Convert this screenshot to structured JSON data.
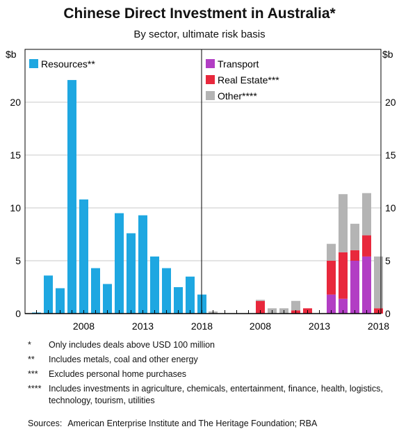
{
  "title": "Chinese Direct Investment in Australia*",
  "subtitle": "By sector, ultimate risk basis",
  "colors": {
    "resources": "#1ea7e1",
    "transport": "#b23ec4",
    "real_estate": "#e8283c",
    "other": "#b4b4b4",
    "gridline": "#c8c8c8",
    "axis": "#000000"
  },
  "chart_data": [
    {
      "type": "bar",
      "x": [
        2004,
        2005,
        2006,
        2007,
        2008,
        2009,
        2010,
        2011,
        2012,
        2013,
        2014,
        2015,
        2016,
        2017,
        2018
      ],
      "series": [
        {
          "name": "Resources**",
          "values": [
            0.1,
            3.6,
            2.4,
            22.1,
            10.8,
            4.3,
            2.8,
            9.5,
            7.6,
            9.3,
            5.4,
            4.3,
            2.5,
            3.5,
            1.8
          ]
        }
      ],
      "xticks": [
        "2008",
        "2013",
        "2018"
      ],
      "yticks": [
        "0",
        "5",
        "10",
        "15",
        "20"
      ],
      "ylabel": "$b",
      "ylim": [
        0,
        25
      ],
      "legend_position": "top-left"
    },
    {
      "type": "bar",
      "stacked": true,
      "x": [
        2004,
        2005,
        2006,
        2007,
        2008,
        2009,
        2010,
        2011,
        2012,
        2013,
        2014,
        2015,
        2016,
        2017,
        2018
      ],
      "series": [
        {
          "name": "Transport",
          "values": [
            0,
            0,
            0,
            0,
            0,
            0,
            0,
            0,
            0,
            0,
            1.8,
            1.4,
            5.0,
            5.4,
            0
          ]
        },
        {
          "name": "Real Estate***",
          "values": [
            0,
            0,
            0,
            0,
            1.2,
            0,
            0,
            0.3,
            0.5,
            0,
            3.2,
            4.4,
            1.0,
            2.0,
            0.5
          ]
        },
        {
          "name": "Other****",
          "values": [
            0.2,
            0,
            0,
            0,
            0.1,
            0.5,
            0.5,
            0.9,
            0,
            0,
            1.6,
            5.5,
            2.5,
            4.0,
            4.9
          ]
        }
      ],
      "xticks": [
        "2008",
        "2013",
        "2018"
      ],
      "yticks": [
        "0",
        "5",
        "10",
        "15",
        "20"
      ],
      "ylabel": "$b",
      "ylim": [
        0,
        25
      ],
      "legend_position": "top-left"
    }
  ],
  "notes": [
    {
      "mark": "*",
      "text": "Only includes deals above USD 100 million"
    },
    {
      "mark": "**",
      "text": "Includes metals, coal and other energy"
    },
    {
      "mark": "***",
      "text": "Excludes personal home purchases"
    },
    {
      "mark": "****",
      "text": "Includes investments in agriculture, chemicals, entertainment, finance, health, logistics, technology, tourism, utilities"
    }
  ],
  "sources": {
    "label": "Sources:",
    "text": "American Enterprise Institute and The Heritage Foundation; RBA"
  }
}
